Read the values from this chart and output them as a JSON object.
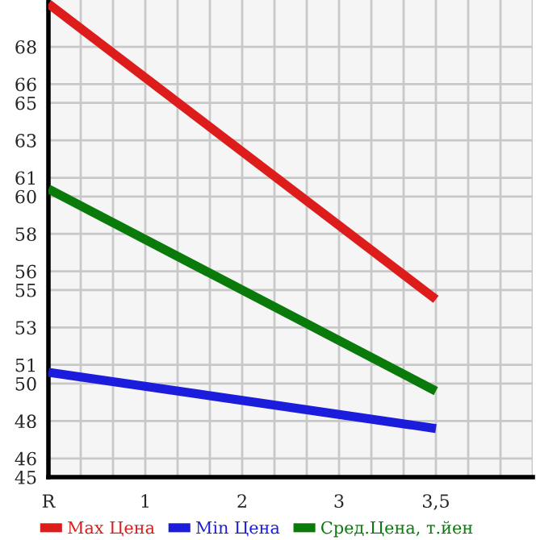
{
  "chart_data": {
    "type": "line",
    "categories": [
      "R",
      "1",
      "2",
      "3",
      "3,5"
    ],
    "series": [
      {
        "name": "Max Цена",
        "color": "#dd1c1c",
        "values": [
          70.3,
          null,
          null,
          null,
          54.5
        ]
      },
      {
        "name": "Min Цена",
        "color": "#1c1cdd",
        "values": [
          50.6,
          null,
          null,
          null,
          47.6
        ]
      },
      {
        "name": "Сред.Цена, т.йен",
        "color": "#0a7a0a",
        "values": [
          60.4,
          null,
          null,
          null,
          49.6
        ]
      }
    ],
    "ylim": [
      45,
      70.5
    ],
    "yticks": [
      45,
      46,
      48,
      50,
      51,
      53,
      55,
      56,
      58,
      60,
      61,
      63,
      65,
      66,
      68
    ],
    "grid": true,
    "legend": "bottom",
    "marker": "none",
    "line_style": "solid"
  }
}
